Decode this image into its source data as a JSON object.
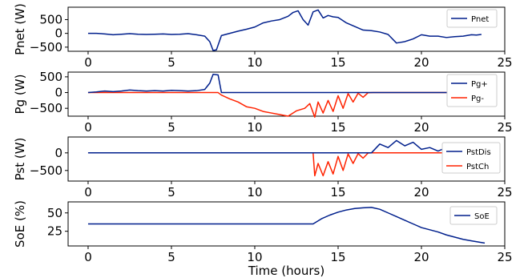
{
  "chart_data": [
    {
      "type": "line",
      "ylabel": "Pnet (W)",
      "xlabel": "",
      "xlim": [
        -1.2,
        25
      ],
      "ylim": [
        -650,
        950
      ],
      "xticks": [
        "0",
        "5",
        "10",
        "15",
        "20",
        "25"
      ],
      "yticks": [
        "500",
        "0",
        "−500"
      ],
      "ytick_values": [
        500,
        0,
        -500
      ],
      "legend_position": "top-right",
      "series": [
        {
          "name": "Pnet",
          "color": "#001f8c",
          "x": [
            0,
            0.5,
            1,
            1.5,
            2,
            2.5,
            3,
            3.5,
            4,
            4.5,
            5,
            5.5,
            6,
            6.5,
            7,
            7.3,
            7.5,
            7.7,
            8,
            8.5,
            9,
            9.5,
            10,
            10.5,
            11,
            11.5,
            12,
            12.3,
            12.6,
            12.9,
            13.2,
            13.5,
            13.8,
            14.1,
            14.4,
            14.7,
            15,
            15.5,
            16,
            16.5,
            17,
            17.5,
            18,
            18.5,
            19,
            19.5,
            20,
            20.5,
            21,
            21.5,
            22,
            22.5,
            23,
            23.3,
            23.6
          ],
          "y": [
            0,
            0,
            -20,
            -50,
            -30,
            -10,
            -30,
            -40,
            -30,
            -20,
            -40,
            -30,
            -10,
            -50,
            -100,
            -300,
            -620,
            -600,
            -80,
            0,
            80,
            150,
            230,
            380,
            450,
            500,
            620,
            760,
            820,
            500,
            300,
            780,
            850,
            560,
            650,
            600,
            580,
            380,
            250,
            120,
            100,
            50,
            -40,
            -350,
            -300,
            -200,
            -50,
            -100,
            -100,
            -150,
            -120,
            -100,
            -50,
            -60,
            -40
          ]
        }
      ]
    },
    {
      "type": "line",
      "ylabel": "Pg (W)",
      "xlabel": "",
      "xlim": [
        -1.2,
        25
      ],
      "ylim": [
        -750,
        650
      ],
      "xticks": [
        "0",
        "5",
        "10",
        "15",
        "20",
        "25"
      ],
      "yticks": [
        "500",
        "0",
        "−500"
      ],
      "ytick_values": [
        500,
        0,
        -500
      ],
      "legend_position": "top-right",
      "series": [
        {
          "name": "Pg+",
          "color": "#001f8c",
          "x": [
            0,
            0.5,
            1,
            1.5,
            2,
            2.5,
            3,
            3.5,
            4,
            4.5,
            5,
            5.5,
            6,
            6.5,
            7,
            7.3,
            7.5,
            7.8,
            8,
            23.6
          ],
          "y": [
            0,
            20,
            50,
            30,
            50,
            80,
            60,
            50,
            60,
            50,
            70,
            60,
            50,
            60,
            100,
            300,
            580,
            560,
            0,
            0
          ]
        },
        {
          "name": "Pg-",
          "color": "#ff2200",
          "x": [
            0,
            7.8,
            8,
            8.5,
            9,
            9.5,
            10,
            10.5,
            11,
            11.5,
            12,
            12.5,
            13,
            13.3,
            13.6,
            13.8,
            14.1,
            14.4,
            14.7,
            15,
            15.3,
            15.6,
            15.9,
            16.2,
            16.5,
            16.8,
            17.1,
            23.6
          ],
          "y": [
            0,
            0,
            -80,
            -200,
            -300,
            -450,
            -500,
            -600,
            -650,
            -700,
            -750,
            -580,
            -500,
            -350,
            -780,
            -300,
            -650,
            -250,
            -600,
            -100,
            -500,
            -30,
            -300,
            -20,
            -150,
            -5,
            0,
            0
          ]
        }
      ]
    },
    {
      "type": "line",
      "ylabel": "Pst (W)",
      "xlabel": "",
      "xlim": [
        -1.2,
        25
      ],
      "ylim": [
        -800,
        450
      ],
      "xticks": [
        "0",
        "5",
        "10",
        "15",
        "20",
        "25"
      ],
      "yticks": [
        "0",
        "−500"
      ],
      "ytick_values": [
        0,
        -500
      ],
      "legend_position": "right",
      "series": [
        {
          "name": "PstDis",
          "color": "#001f8c",
          "x": [
            0,
            17,
            17.5,
            18,
            18.5,
            19,
            19.5,
            20,
            20.5,
            21,
            21.5,
            22,
            22.5,
            23,
            23.3,
            23.6
          ],
          "y": [
            0,
            0,
            250,
            150,
            350,
            200,
            300,
            100,
            150,
            50,
            150,
            100,
            150,
            80,
            100,
            80
          ]
        },
        {
          "name": "PstCh",
          "color": "#ff2200",
          "x": [
            0,
            13.5,
            13.6,
            13.8,
            14.1,
            14.4,
            14.7,
            15,
            15.3,
            15.6,
            15.9,
            16.2,
            16.5,
            16.8,
            17,
            23.6
          ],
          "y": [
            0,
            0,
            -650,
            -300,
            -650,
            -250,
            -600,
            -100,
            -500,
            -30,
            -300,
            -20,
            -150,
            -5,
            0,
            0
          ]
        }
      ]
    },
    {
      "type": "line",
      "ylabel": "SoE (%)",
      "xlabel": "Time (hours)",
      "xlim": [
        -1.2,
        25
      ],
      "ylim": [
        5,
        65
      ],
      "xticks": [
        "0",
        "5",
        "10",
        "15",
        "20",
        "25"
      ],
      "yticks": [
        "50",
        "25"
      ],
      "ytick_values": [
        50,
        25
      ],
      "legend_position": "top-right",
      "series": [
        {
          "name": "SoE",
          "color": "#001f8c",
          "x": [
            0,
            13.5,
            14,
            14.5,
            15,
            15.5,
            16,
            16.5,
            17,
            17.5,
            18,
            18.5,
            19,
            19.5,
            20,
            20.5,
            21,
            21.5,
            22,
            22.5,
            23,
            23.5,
            23.8
          ],
          "y": [
            35,
            35,
            42,
            47,
            51,
            54,
            56,
            57,
            57.5,
            55,
            50,
            45,
            40,
            35,
            30,
            27,
            24,
            20,
            17,
            14,
            12,
            10,
            9
          ]
        }
      ]
    }
  ]
}
